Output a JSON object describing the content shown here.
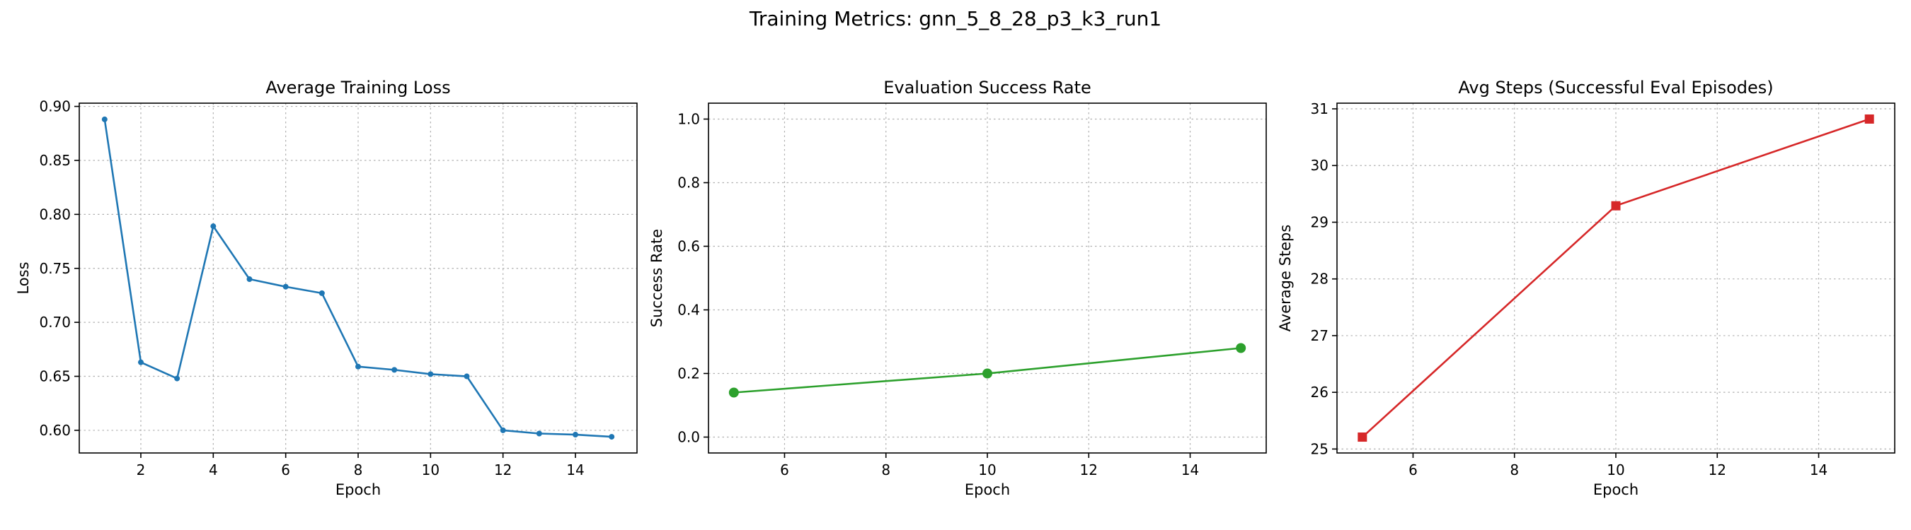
{
  "figure": {
    "title": "Training Metrics: gnn_5_8_28_p3_k3_run1"
  },
  "chart_data": [
    {
      "type": "line",
      "title": "Average Training Loss",
      "xlabel": "Epoch",
      "ylabel": "Loss",
      "x": [
        1,
        2,
        3,
        4,
        5,
        6,
        7,
        8,
        9,
        10,
        11,
        12,
        13,
        14,
        15
      ],
      "series": [
        {
          "values": [
            0.888,
            0.663,
            0.648,
            0.789,
            0.74,
            0.733,
            0.727,
            0.659,
            0.656,
            0.652,
            0.65,
            0.6,
            0.597,
            0.596,
            0.594
          ],
          "color": "#1f77b4",
          "marker": "circle-small"
        }
      ],
      "xlim": [
        0.3,
        15.7
      ],
      "ylim": [
        0.579,
        0.903
      ],
      "xticks": [
        2,
        4,
        6,
        8,
        10,
        12,
        14
      ],
      "yticks": [
        0.6,
        0.65,
        0.7,
        0.75,
        0.8,
        0.85,
        0.9
      ],
      "ytick_decimals": 2,
      "grid": true
    },
    {
      "type": "line",
      "title": "Evaluation Success Rate",
      "xlabel": "Epoch",
      "ylabel": "Success Rate",
      "x": [
        5,
        10,
        15
      ],
      "series": [
        {
          "values": [
            0.14,
            0.2,
            0.28
          ],
          "color": "#2ca02c",
          "marker": "circle"
        }
      ],
      "xlim": [
        4.5,
        15.5
      ],
      "ylim": [
        -0.05,
        1.05
      ],
      "xticks": [
        6,
        8,
        10,
        12,
        14
      ],
      "yticks": [
        0.0,
        0.2,
        0.4,
        0.6,
        0.8,
        1.0
      ],
      "ytick_decimals": 1,
      "grid": true
    },
    {
      "type": "line",
      "title": "Avg Steps (Successful Eval Episodes)",
      "xlabel": "Epoch",
      "ylabel": "Average Steps",
      "x": [
        5,
        10,
        15
      ],
      "series": [
        {
          "values": [
            25.21,
            29.29,
            30.82
          ],
          "color": "#d62728",
          "marker": "square"
        }
      ],
      "xlim": [
        4.5,
        15.5
      ],
      "ylim": [
        24.93,
        31.1
      ],
      "xticks": [
        6,
        8,
        10,
        12,
        14
      ],
      "yticks": [
        25,
        26,
        27,
        28,
        29,
        30,
        31
      ],
      "ytick_decimals": 0,
      "grid": true
    }
  ]
}
